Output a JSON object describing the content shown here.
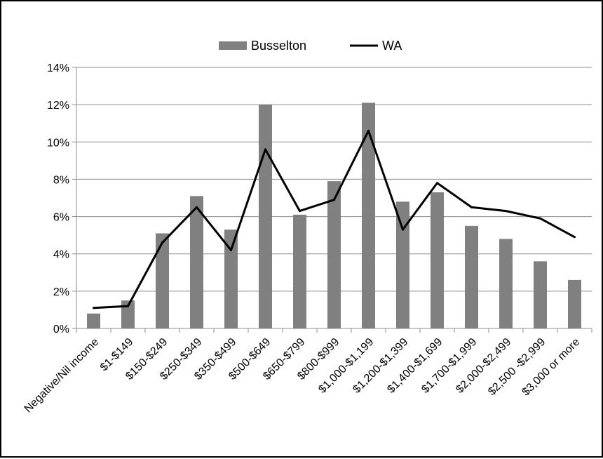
{
  "chart_data": {
    "type": "bar",
    "categories": [
      "Negative/Nil income",
      "$1-$149",
      "$150-$249",
      "$250-$349",
      "$350-$499",
      "$500-$649",
      "$650-$799",
      "$800-$999",
      "$1,000-$1,199",
      "$1,200-$1,399",
      "$1,400-$1,699",
      "$1,700-$1,999",
      "$2,000-$2,499",
      "$2,500 -$2,999",
      "$3,000 or more"
    ],
    "series": [
      {
        "name": "Busselton",
        "kind": "bar",
        "color": "#808080",
        "values": [
          0.8,
          1.5,
          5.1,
          7.1,
          5.3,
          12.0,
          6.1,
          7.9,
          12.1,
          6.8,
          7.3,
          5.5,
          4.8,
          3.6,
          2.6
        ]
      },
      {
        "name": "WA",
        "kind": "line",
        "color": "#000000",
        "values": [
          1.1,
          1.2,
          4.6,
          6.5,
          4.2,
          9.6,
          6.3,
          6.9,
          10.6,
          5.3,
          7.8,
          6.5,
          6.3,
          5.9,
          4.9
        ]
      }
    ],
    "yticks": [
      "0%",
      "2%",
      "4%",
      "6%",
      "8%",
      "10%",
      "12%",
      "14%"
    ],
    "ylim": [
      0,
      14
    ],
    "title": "",
    "xlabel": "",
    "ylabel": "",
    "grid": true,
    "legend_position": "top"
  }
}
